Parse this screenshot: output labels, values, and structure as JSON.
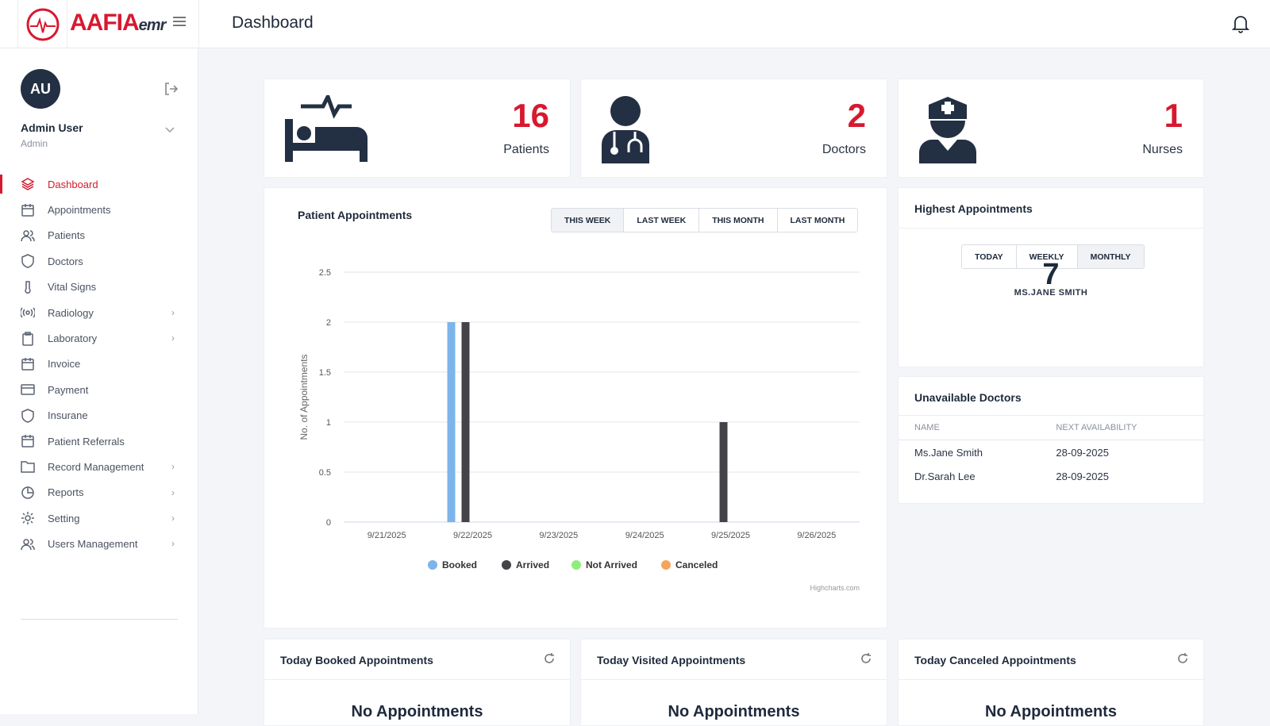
{
  "header": {
    "brand": "AAFIA",
    "brand_suffix": "emr",
    "title": "Dashboard"
  },
  "user": {
    "initials": "AU",
    "name": "Admin User",
    "role": "Admin"
  },
  "sidebar": {
    "items": [
      {
        "label": "Dashboard",
        "icon": "layers",
        "active": true,
        "sub": false
      },
      {
        "label": "Appointments",
        "icon": "calendar",
        "sub": false
      },
      {
        "label": "Patients",
        "icon": "users",
        "sub": false
      },
      {
        "label": "Doctors",
        "icon": "shield",
        "sub": false
      },
      {
        "label": "Vital Signs",
        "icon": "thermometer",
        "sub": false
      },
      {
        "label": "Radiology",
        "icon": "broadcast",
        "sub": true
      },
      {
        "label": "Laboratory",
        "icon": "clipboard",
        "sub": true
      },
      {
        "label": "Invoice",
        "icon": "calendar",
        "sub": false
      },
      {
        "label": "Payment",
        "icon": "credit-card",
        "sub": false
      },
      {
        "label": "Insurane",
        "icon": "shield",
        "sub": false
      },
      {
        "label": "Patient Referrals",
        "icon": "calendar",
        "sub": false
      },
      {
        "label": "Record Management",
        "icon": "folder",
        "sub": true
      },
      {
        "label": "Reports",
        "icon": "pie-chart",
        "sub": true
      },
      {
        "label": "Setting",
        "icon": "gear",
        "sub": true
      },
      {
        "label": "Users Management",
        "icon": "users",
        "sub": true
      }
    ]
  },
  "stats": [
    {
      "value": "16",
      "label": "Patients",
      "icon": "bed-icon"
    },
    {
      "value": "2",
      "label": "Doctors",
      "icon": "doctor-icon"
    },
    {
      "value": "1",
      "label": "Nurses",
      "icon": "nurse-icon"
    }
  ],
  "appointments": {
    "title": "Patient Appointments",
    "filters": [
      "THIS WEEK",
      "LAST WEEK",
      "THIS MONTH",
      "LAST MONTH"
    ],
    "credit": "Highcharts.com"
  },
  "chart_data": {
    "type": "bar",
    "title": "Patient Appointments",
    "xlabel": "",
    "ylabel": "No. of Appointments",
    "ylim": [
      0,
      2.5
    ],
    "yticks": [
      "0",
      "0.5",
      "1",
      "1.5",
      "2",
      "2.5"
    ],
    "categories": [
      "9/21/2025",
      "9/22/2025",
      "9/23/2025",
      "9/24/2025",
      "9/25/2025",
      "9/26/2025"
    ],
    "series": [
      {
        "name": "Booked",
        "color": "#7cb5ec",
        "values": [
          0,
          2,
          0,
          0,
          0,
          0
        ]
      },
      {
        "name": "Arrived",
        "color": "#434348",
        "values": [
          0,
          2,
          0,
          0,
          1,
          0
        ]
      },
      {
        "name": "Not Arrived",
        "color": "#90ed7d",
        "values": [
          0,
          0,
          0,
          0,
          0,
          0
        ]
      },
      {
        "name": "Canceled",
        "color": "#f7a35c",
        "values": [
          0,
          0,
          0,
          0,
          0,
          0
        ]
      }
    ],
    "legend": "bottom-center",
    "grid": true
  },
  "highest": {
    "title": "Highest Appointments",
    "filters": [
      "TODAY",
      "WEEKLY",
      "MONTHLY"
    ],
    "count": "7",
    "name": "MS.JANE SMITH"
  },
  "unavailable": {
    "title": "Unavailable Doctors",
    "columns": [
      "NAME",
      "NEXT AVAILABILITY"
    ],
    "rows": [
      [
        "Ms.Jane Smith",
        "28-09-2025"
      ],
      [
        "Dr.Sarah Lee",
        "28-09-2025"
      ]
    ]
  },
  "today": [
    {
      "title": "Today Booked Appointments",
      "empty": "No Appointments"
    },
    {
      "title": "Today Visited Appointments",
      "empty": "No Appointments"
    },
    {
      "title": "Today Canceled Appointments",
      "empty": "No Appointments"
    }
  ],
  "colors": {
    "accent": "#d7192f",
    "dark": "#232f43"
  }
}
